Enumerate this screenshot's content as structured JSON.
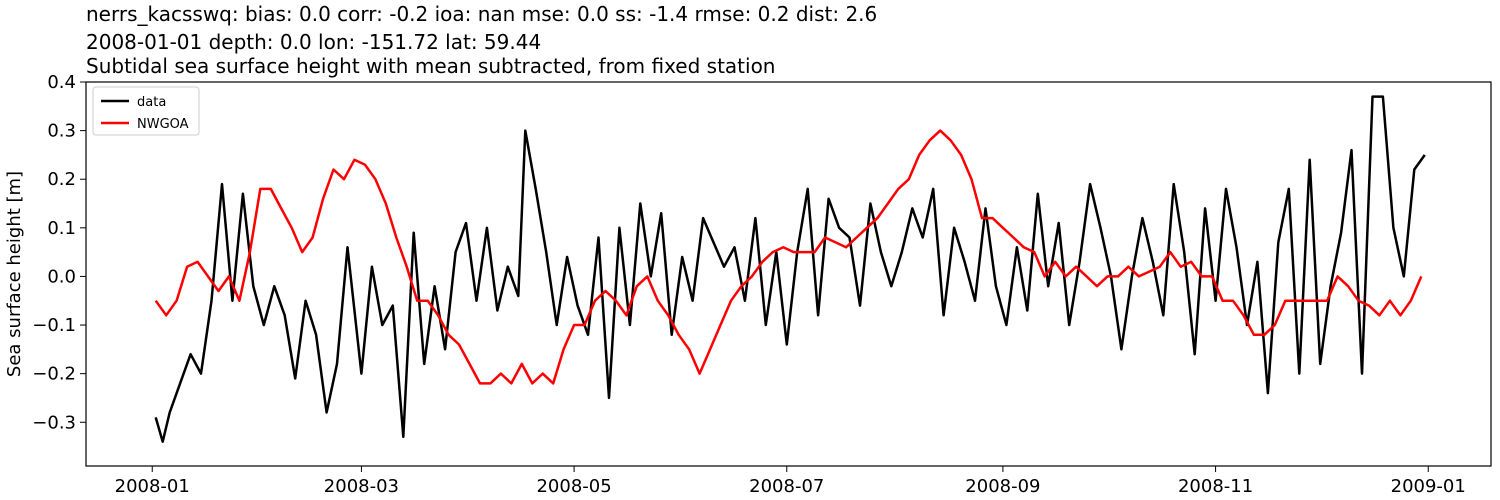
{
  "chart_data": {
    "type": "line",
    "title_lines": [
      "nerrs_kacsswq: bias: 0.0  corr: -0.2  ioa: nan  mse: 0.0  ss: -1.4  rmse: 0.2  dist: 2.6",
      "2008-01-01 depth: 0.0 lon: -151.72 lat: 59.44",
      "Subtidal sea surface height with mean subtracted, from fixed station"
    ],
    "xlabel": "",
    "ylabel": "Sea surface height [m]",
    "xlim": [
      "2007-12-13",
      "2009-01-19"
    ],
    "ylim": [
      -0.39,
      0.4
    ],
    "x_ticks": [
      "2008-01",
      "2008-03",
      "2008-05",
      "2008-07",
      "2008-09",
      "2008-11",
      "2009-01"
    ],
    "y_ticks": [
      0.4,
      0.3,
      0.2,
      0.1,
      0.0,
      -0.1,
      -0.2,
      -0.3
    ],
    "y_tick_labels": [
      "0.4",
      "0.3",
      "0.2",
      "0.1",
      "0.0",
      "−0.1",
      "−0.2",
      "−0.3"
    ],
    "grid": false,
    "legend_position": "upper-left",
    "series": [
      {
        "name": "data",
        "color": "#000000",
        "x": [
          "2008-01-02",
          "2008-01-04",
          "2008-01-06",
          "2008-01-09",
          "2008-01-12",
          "2008-01-15",
          "2008-01-18",
          "2008-01-21",
          "2008-01-24",
          "2008-01-27",
          "2008-01-30",
          "2008-02-02",
          "2008-02-05",
          "2008-02-08",
          "2008-02-11",
          "2008-02-14",
          "2008-02-17",
          "2008-02-20",
          "2008-02-23",
          "2008-02-26",
          "2008-03-01",
          "2008-03-04",
          "2008-03-07",
          "2008-03-10",
          "2008-03-13",
          "2008-03-16",
          "2008-03-19",
          "2008-03-22",
          "2008-03-25",
          "2008-03-28",
          "2008-03-31",
          "2008-04-03",
          "2008-04-06",
          "2008-04-09",
          "2008-04-12",
          "2008-04-15",
          "2008-04-17",
          "2008-04-20",
          "2008-04-23",
          "2008-04-26",
          "2008-04-29",
          "2008-05-02",
          "2008-05-05",
          "2008-05-08",
          "2008-05-11",
          "2008-05-14",
          "2008-05-17",
          "2008-05-20",
          "2008-05-23",
          "2008-05-26",
          "2008-05-29",
          "2008-06-01",
          "2008-06-04",
          "2008-06-07",
          "2008-06-10",
          "2008-06-13",
          "2008-06-16",
          "2008-06-19",
          "2008-06-22",
          "2008-06-25",
          "2008-06-28",
          "2008-07-01",
          "2008-07-04",
          "2008-07-07",
          "2008-07-10",
          "2008-07-13",
          "2008-07-16",
          "2008-07-19",
          "2008-07-22",
          "2008-07-25",
          "2008-07-28",
          "2008-07-31",
          "2008-08-03",
          "2008-08-06",
          "2008-08-09",
          "2008-08-12",
          "2008-08-15",
          "2008-08-18",
          "2008-08-21",
          "2008-08-24",
          "2008-08-27",
          "2008-08-30",
          "2008-09-02",
          "2008-09-05",
          "2008-09-08",
          "2008-09-11",
          "2008-09-14",
          "2008-09-17",
          "2008-09-20",
          "2008-09-23",
          "2008-09-26",
          "2008-09-29",
          "2008-10-02",
          "2008-10-05",
          "2008-10-08",
          "2008-10-11",
          "2008-10-14",
          "2008-10-17",
          "2008-10-20",
          "2008-10-23",
          "2008-10-26",
          "2008-10-29",
          "2008-11-01",
          "2008-11-04",
          "2008-11-07",
          "2008-11-10",
          "2008-11-13",
          "2008-11-16",
          "2008-11-19",
          "2008-11-22",
          "2008-11-25",
          "2008-11-28",
          "2008-12-01",
          "2008-12-04",
          "2008-12-07",
          "2008-12-10",
          "2008-12-13",
          "2008-12-16",
          "2008-12-19",
          "2008-12-22",
          "2008-12-25",
          "2008-12-28",
          "2008-12-31"
        ],
        "y": [
          -0.29,
          -0.34,
          -0.28,
          -0.22,
          -0.16,
          -0.2,
          -0.05,
          0.19,
          -0.05,
          0.17,
          -0.02,
          -0.1,
          -0.02,
          -0.08,
          -0.21,
          -0.05,
          -0.12,
          -0.28,
          -0.18,
          0.06,
          -0.2,
          0.02,
          -0.1,
          -0.06,
          -0.33,
          0.09,
          -0.18,
          -0.02,
          -0.15,
          0.05,
          0.11,
          -0.05,
          0.1,
          -0.07,
          0.02,
          -0.04,
          0.3,
          0.18,
          0.05,
          -0.1,
          0.04,
          -0.06,
          -0.12,
          0.08,
          -0.25,
          0.1,
          -0.1,
          0.15,
          0.0,
          0.13,
          -0.12,
          0.04,
          -0.05,
          0.12,
          0.07,
          0.02,
          0.06,
          -0.05,
          0.12,
          -0.1,
          0.05,
          -0.14,
          0.05,
          0.18,
          -0.08,
          0.16,
          0.1,
          0.08,
          -0.06,
          0.15,
          0.05,
          -0.02,
          0.05,
          0.14,
          0.08,
          0.18,
          -0.08,
          0.1,
          0.03,
          -0.05,
          0.14,
          -0.02,
          -0.1,
          0.06,
          -0.07,
          0.17,
          -0.02,
          0.11,
          -0.1,
          0.03,
          0.19,
          0.1,
          0.0,
          -0.15,
          0.0,
          0.12,
          0.03,
          -0.08,
          0.19,
          0.05,
          -0.16,
          0.14,
          -0.05,
          0.18,
          0.06,
          -0.1,
          0.03,
          -0.24,
          0.07,
          0.18,
          -0.2,
          0.24,
          -0.18,
          -0.02,
          0.09,
          0.26,
          -0.2,
          0.37,
          0.37,
          0.1,
          0.0,
          0.22,
          0.25
        ]
      },
      {
        "name": "NWGOA",
        "color": "#ff0000",
        "x": [
          "2008-01-02",
          "2008-01-05",
          "2008-01-08",
          "2008-01-11",
          "2008-01-14",
          "2008-01-17",
          "2008-01-20",
          "2008-01-23",
          "2008-01-26",
          "2008-01-29",
          "2008-02-01",
          "2008-02-04",
          "2008-02-07",
          "2008-02-10",
          "2008-02-13",
          "2008-02-16",
          "2008-02-19",
          "2008-02-22",
          "2008-02-25",
          "2008-02-28",
          "2008-03-02",
          "2008-03-05",
          "2008-03-08",
          "2008-03-11",
          "2008-03-14",
          "2008-03-17",
          "2008-03-20",
          "2008-03-23",
          "2008-03-26",
          "2008-03-29",
          "2008-04-01",
          "2008-04-04",
          "2008-04-07",
          "2008-04-10",
          "2008-04-13",
          "2008-04-16",
          "2008-04-19",
          "2008-04-22",
          "2008-04-25",
          "2008-04-28",
          "2008-05-01",
          "2008-05-04",
          "2008-05-07",
          "2008-05-10",
          "2008-05-13",
          "2008-05-16",
          "2008-05-19",
          "2008-05-22",
          "2008-05-25",
          "2008-05-28",
          "2008-05-31",
          "2008-06-03",
          "2008-06-06",
          "2008-06-09",
          "2008-06-12",
          "2008-06-15",
          "2008-06-18",
          "2008-06-21",
          "2008-06-24",
          "2008-06-27",
          "2008-06-30",
          "2008-07-03",
          "2008-07-06",
          "2008-07-09",
          "2008-07-12",
          "2008-07-15",
          "2008-07-18",
          "2008-07-21",
          "2008-07-24",
          "2008-07-27",
          "2008-07-30",
          "2008-08-02",
          "2008-08-05",
          "2008-08-08",
          "2008-08-11",
          "2008-08-14",
          "2008-08-17",
          "2008-08-20",
          "2008-08-23",
          "2008-08-26",
          "2008-08-29",
          "2008-09-01",
          "2008-09-04",
          "2008-09-07",
          "2008-09-10",
          "2008-09-13",
          "2008-09-16",
          "2008-09-19",
          "2008-09-22",
          "2008-09-25",
          "2008-09-28",
          "2008-10-01",
          "2008-10-04",
          "2008-10-07",
          "2008-10-10",
          "2008-10-13",
          "2008-10-16",
          "2008-10-19",
          "2008-10-22",
          "2008-10-25",
          "2008-10-28",
          "2008-10-31",
          "2008-11-03",
          "2008-11-06",
          "2008-11-09",
          "2008-11-12",
          "2008-11-15",
          "2008-11-18",
          "2008-11-21",
          "2008-11-24",
          "2008-11-27",
          "2008-11-30",
          "2008-12-03",
          "2008-12-06",
          "2008-12-09",
          "2008-12-12",
          "2008-12-15",
          "2008-12-18",
          "2008-12-21",
          "2008-12-24",
          "2008-12-27",
          "2008-12-30"
        ],
        "y": [
          -0.05,
          -0.08,
          -0.05,
          0.02,
          0.03,
          0.0,
          -0.03,
          0.0,
          -0.05,
          0.05,
          0.18,
          0.18,
          0.14,
          0.1,
          0.05,
          0.08,
          0.16,
          0.22,
          0.2,
          0.24,
          0.23,
          0.2,
          0.15,
          0.08,
          0.02,
          -0.05,
          -0.05,
          -0.08,
          -0.12,
          -0.14,
          -0.18,
          -0.22,
          -0.22,
          -0.2,
          -0.22,
          -0.18,
          -0.22,
          -0.2,
          -0.22,
          -0.15,
          -0.1,
          -0.1,
          -0.05,
          -0.03,
          -0.05,
          -0.08,
          -0.02,
          0.0,
          -0.05,
          -0.08,
          -0.12,
          -0.15,
          -0.2,
          -0.15,
          -0.1,
          -0.05,
          -0.02,
          0.0,
          0.03,
          0.05,
          0.06,
          0.05,
          0.05,
          0.05,
          0.08,
          0.07,
          0.06,
          0.08,
          0.1,
          0.12,
          0.15,
          0.18,
          0.2,
          0.25,
          0.28,
          0.3,
          0.28,
          0.25,
          0.2,
          0.12,
          0.12,
          0.1,
          0.08,
          0.06,
          0.05,
          0.0,
          0.03,
          0.0,
          0.02,
          0.0,
          -0.02,
          0.0,
          0.0,
          0.02,
          0.0,
          0.01,
          0.02,
          0.05,
          0.02,
          0.03,
          0.0,
          0.0,
          -0.05,
          -0.05,
          -0.08,
          -0.12,
          -0.12,
          -0.1,
          -0.05,
          -0.05,
          -0.05,
          -0.05,
          -0.05,
          0.0,
          -0.02,
          -0.05,
          -0.06,
          -0.08,
          -0.05,
          -0.08,
          -0.05,
          0.0
        ]
      }
    ]
  }
}
